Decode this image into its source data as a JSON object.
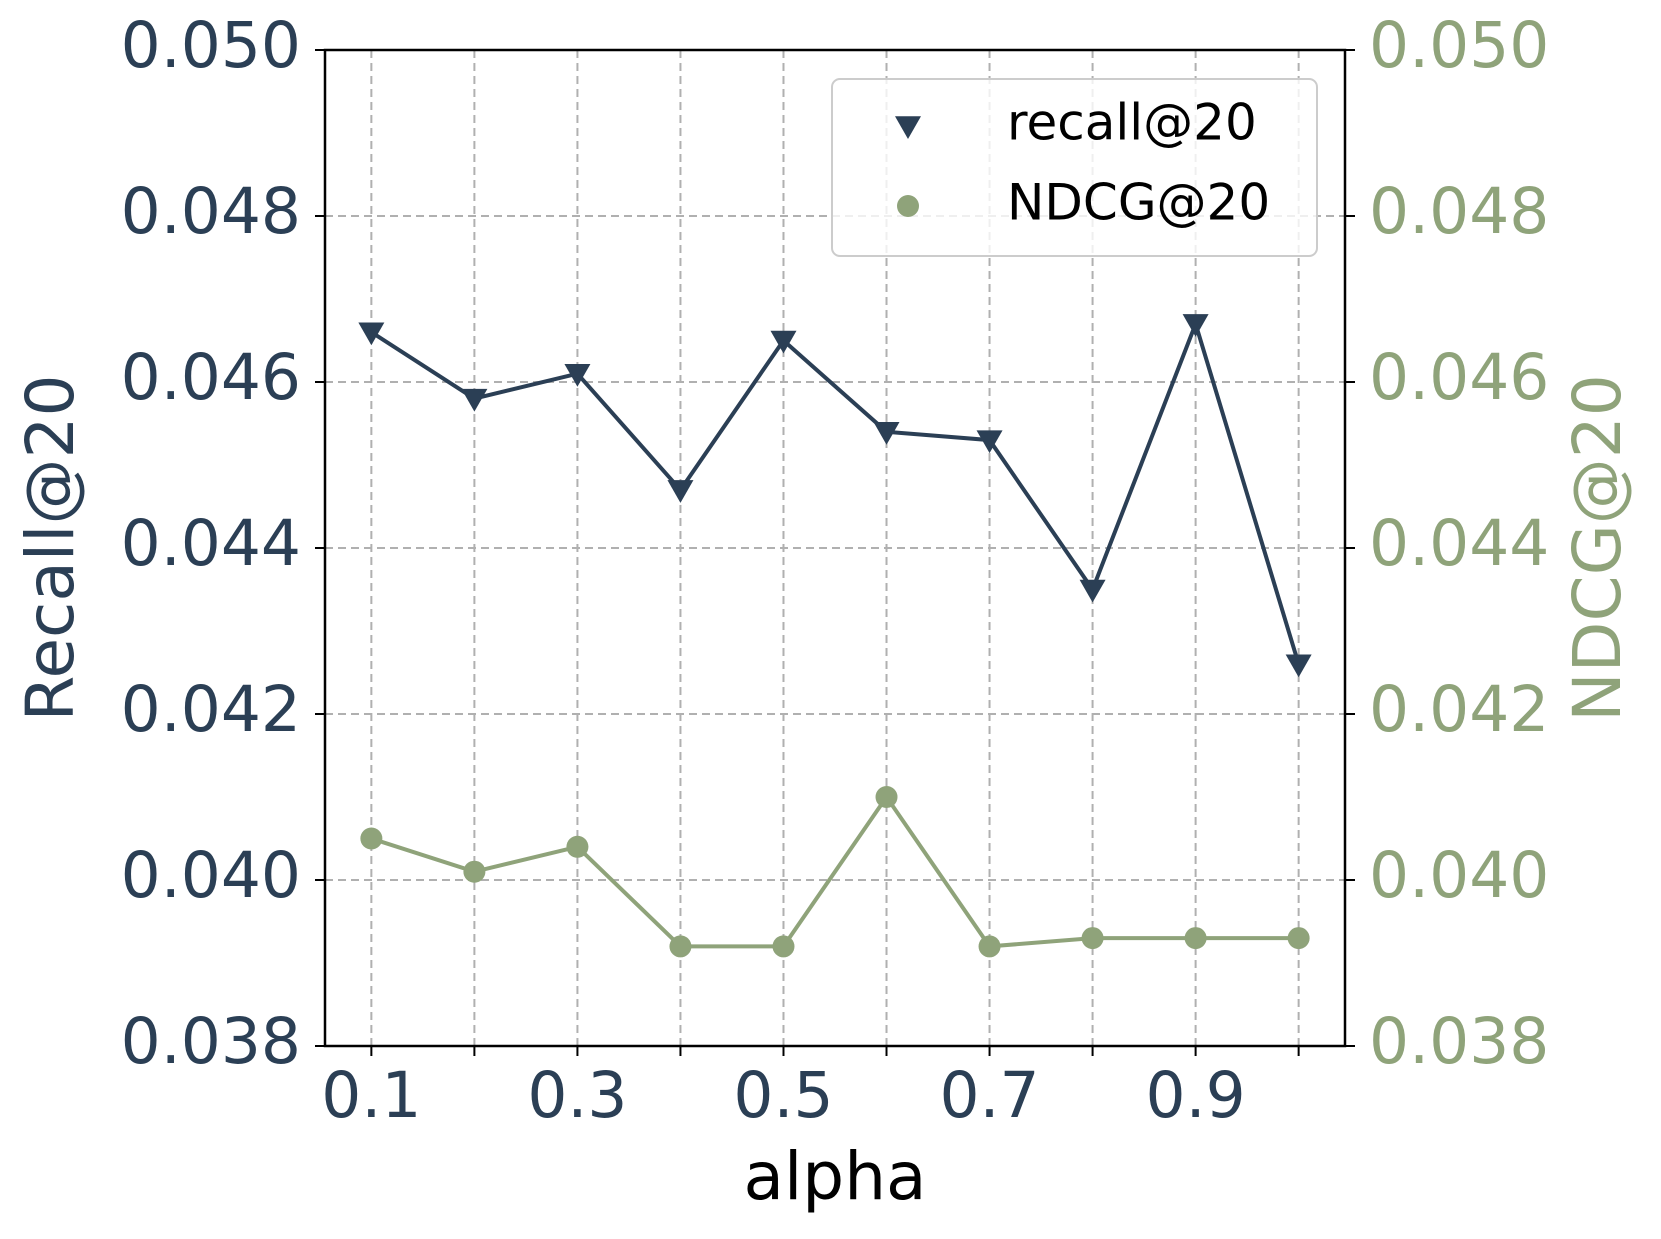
{
  "chart_data": {
    "type": "line",
    "x_label": "alpha",
    "y_label": "Recall@20",
    "y2_label": "NDCG@20",
    "x": [
      0.1,
      0.2,
      0.3,
      0.4,
      0.5,
      0.6,
      0.7,
      0.8,
      0.9,
      1.0
    ],
    "series": [
      {
        "name": "recall@20",
        "color": "#2b3f55",
        "marker": "triangle-down",
        "values": [
          0.0466,
          0.0458,
          0.0461,
          0.0447,
          0.0465,
          0.0454,
          0.0453,
          0.0435,
          0.0467,
          0.0426
        ]
      },
      {
        "name": "NDCG@20",
        "color": "#8fa37a",
        "marker": "circle",
        "axis": "y2",
        "values": [
          0.0405,
          0.0401,
          0.0404,
          0.0392,
          0.0392,
          0.041,
          0.0392,
          0.0393,
          0.0393,
          0.0393
        ]
      }
    ],
    "xlim": [
      0.055,
      1.045
    ],
    "xticks": [
      0.1,
      {
        "value": 0.2,
        "label": null
      },
      0.3,
      {
        "value": 0.4,
        "label": null
      },
      0.5,
      {
        "value": 0.6,
        "label": null
      },
      0.7,
      {
        "value": 0.8,
        "label": null
      },
      0.9,
      {
        "value": 1.0,
        "label": null
      }
    ],
    "ylim": [
      0.038,
      0.05
    ],
    "yticks": [
      {
        "value": 0.038,
        "label": "0.038"
      },
      {
        "value": 0.04,
        "label": "0.040"
      },
      {
        "value": 0.042,
        "label": "0.042"
      },
      {
        "value": 0.044,
        "label": "0.044"
      },
      {
        "value": 0.046,
        "label": "0.046"
      },
      {
        "value": 0.048,
        "label": "0.048"
      },
      {
        "value": 0.05,
        "label": "0.050"
      }
    ],
    "y2lim": [
      0.038,
      0.05
    ],
    "y2ticks": [
      {
        "value": 0.038,
        "label": "0.038"
      },
      {
        "value": 0.04,
        "label": "0.040"
      },
      {
        "value": 0.042,
        "label": "0.042"
      },
      {
        "value": 0.044,
        "label": "0.044"
      },
      {
        "value": 0.046,
        "label": "0.046"
      },
      {
        "value": 0.048,
        "label": "0.048"
      },
      {
        "value": 0.05,
        "label": "0.050"
      }
    ],
    "grid": true,
    "legend_position": "upper-right"
  }
}
